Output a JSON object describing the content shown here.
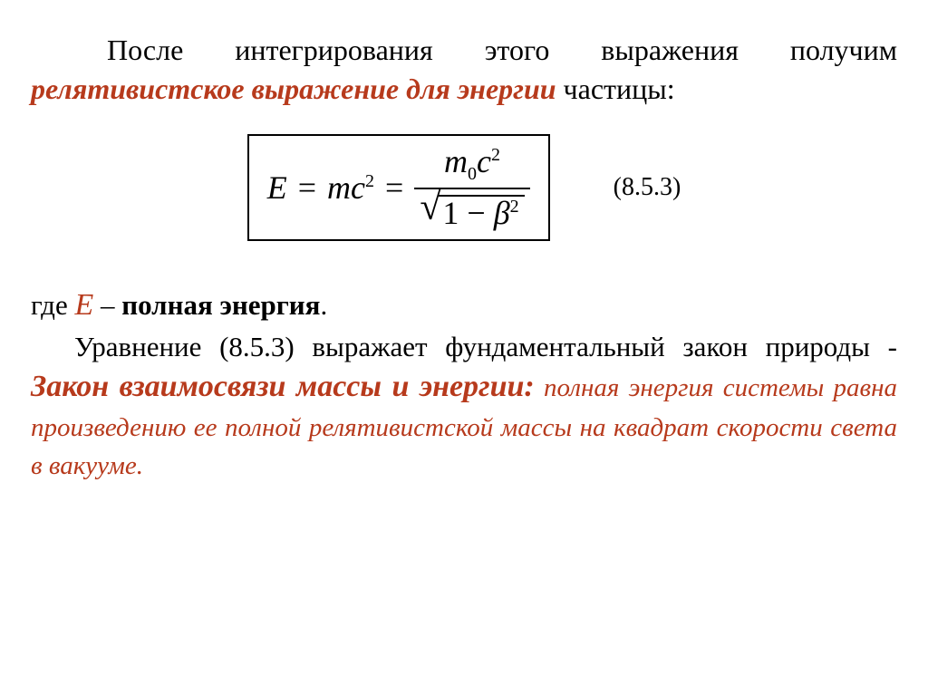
{
  "colors": {
    "text": "#000000",
    "accent": "#b73a1c",
    "background": "#ffffff"
  },
  "typography": {
    "family": "Times New Roman",
    "body_size_pt": 24,
    "emphasis_italic_bold": true
  },
  "para1": {
    "t1": "После интегрирования этого выражения получим ",
    "t2_accent": "релятивистское выражение для энергии",
    "t3": " частицы:"
  },
  "equation": {
    "lhs_var": "E",
    "eq": " = ",
    "mc2_m": "mc",
    "mc2_exp": "2",
    "num_m0": "m",
    "num_sub0": "0",
    "num_c": "c",
    "num_exp2": "2",
    "den_one_minus": "1 − ",
    "den_beta": "β",
    "den_beta_exp": "2",
    "number": "(8.5.3)"
  },
  "where": {
    "t1": "где ",
    "E": "E",
    "t2": " – ",
    "t3_bold": "полная энергия",
    "t4": "."
  },
  "para2": {
    "t1": "Уравнение (8.5.3) выражает фундаментальный закон природы - ",
    "t2_title": "Закон взаимосвязи массы и энергии:",
    "t3_lawtail": " полная энергия системы равна произведению ее полной релятивистской массы на квадрат скорости света в вакууме."
  }
}
